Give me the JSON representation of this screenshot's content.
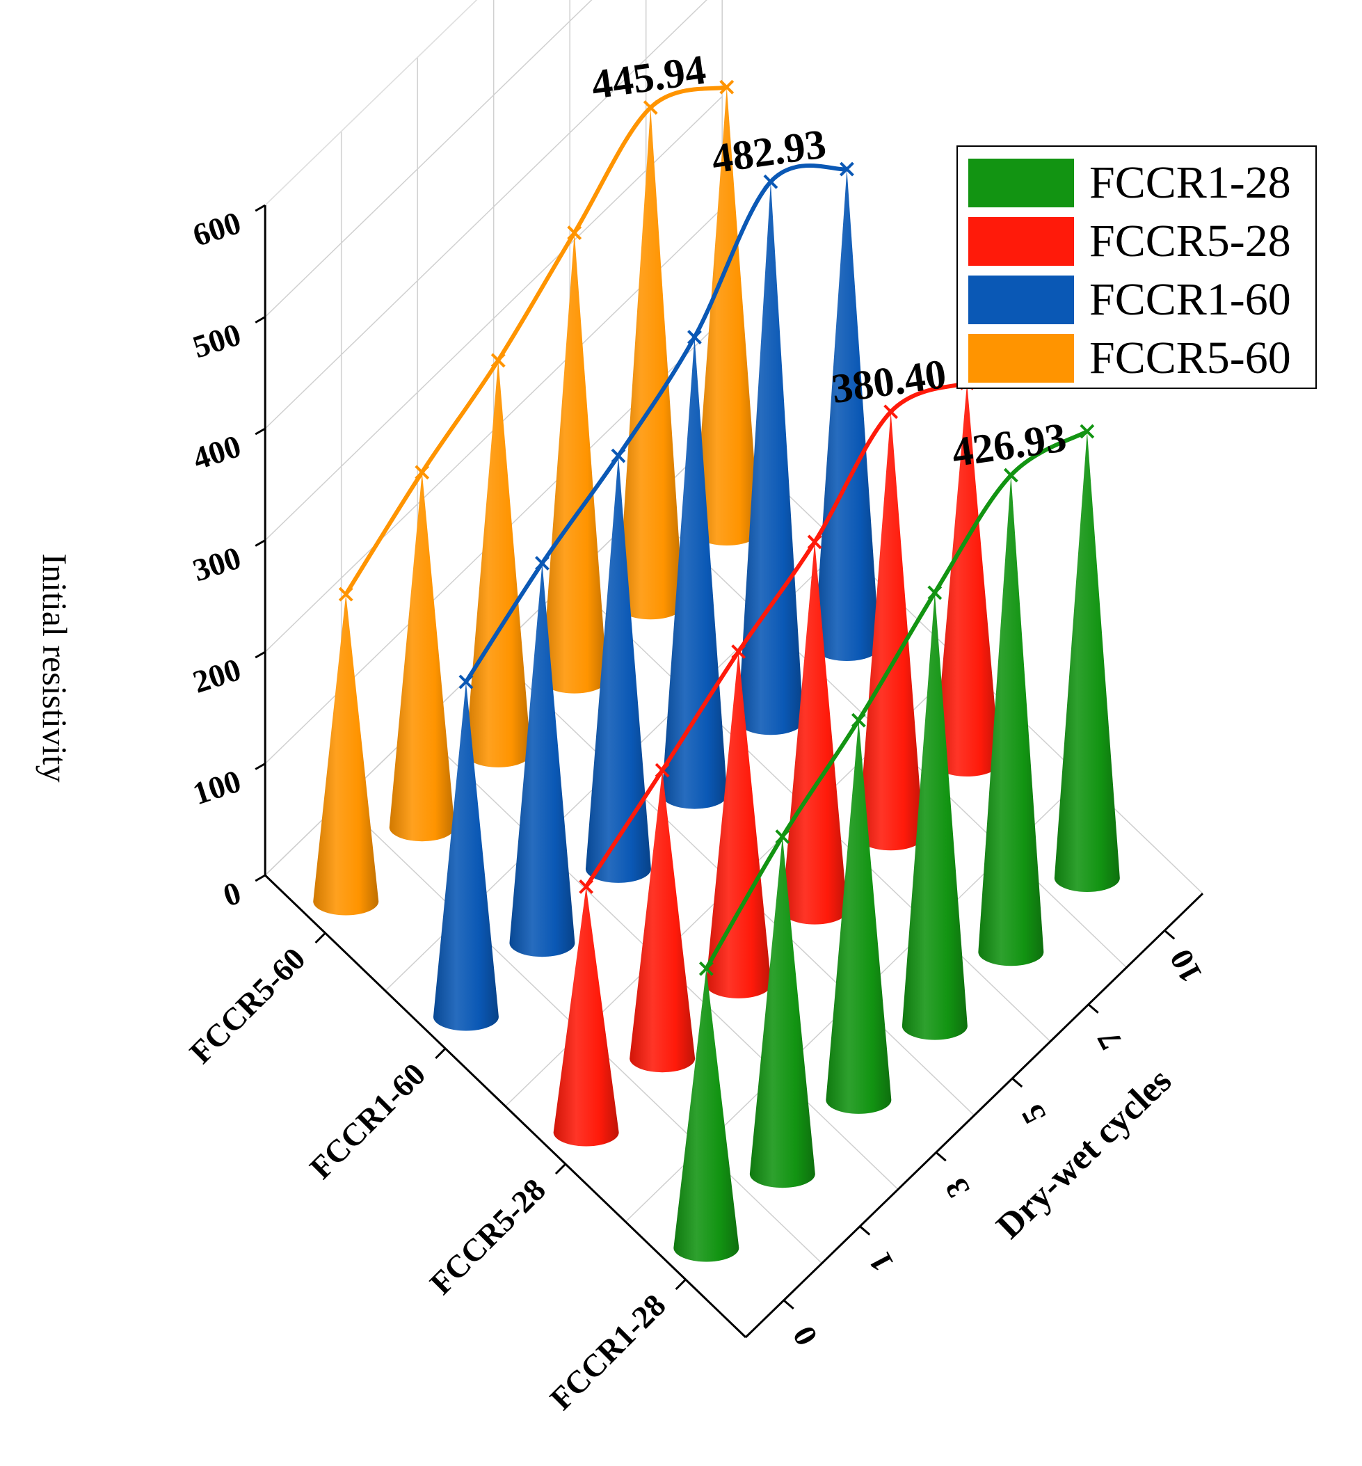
{
  "chart_data": {
    "type": "bar3d-cone",
    "ylabel": "Initial resistivity",
    "xlabel": "Dry-wet cycles",
    "categories": [
      "0",
      "1",
      "3",
      "5",
      "7",
      "10"
    ],
    "groups": [
      "FCCR5-60",
      "FCCR1-60",
      "FCCR5-28",
      "FCCR1-28"
    ],
    "zlim": [
      0,
      600
    ],
    "zticks": [
      "0",
      "100",
      "200",
      "300",
      "400",
      "500",
      "600"
    ],
    "series": [
      {
        "name": "FCCR1-28",
        "color": "#129412",
        "values": [
          250,
          302,
          340,
          388,
          426.93,
          400
        ],
        "peak_label": "426.93"
      },
      {
        "name": "FCCR5-28",
        "color": "#ff1a0a",
        "values": [
          220,
          258,
          298,
          330,
          380.4,
          340
        ],
        "peak_label": "380.40"
      },
      {
        "name": "FCCR1-60",
        "color": "#0a58b5",
        "values": [
          300,
          340,
          370,
          410,
          482.93,
          428
        ],
        "peak_label": "482.93"
      },
      {
        "name": "FCCR5-60",
        "color": "#ff9400",
        "values": [
          275,
          318,
          352,
          400,
          445.94,
          398
        ],
        "peak_label": "445.94"
      }
    ],
    "legend_position": "top-right"
  }
}
